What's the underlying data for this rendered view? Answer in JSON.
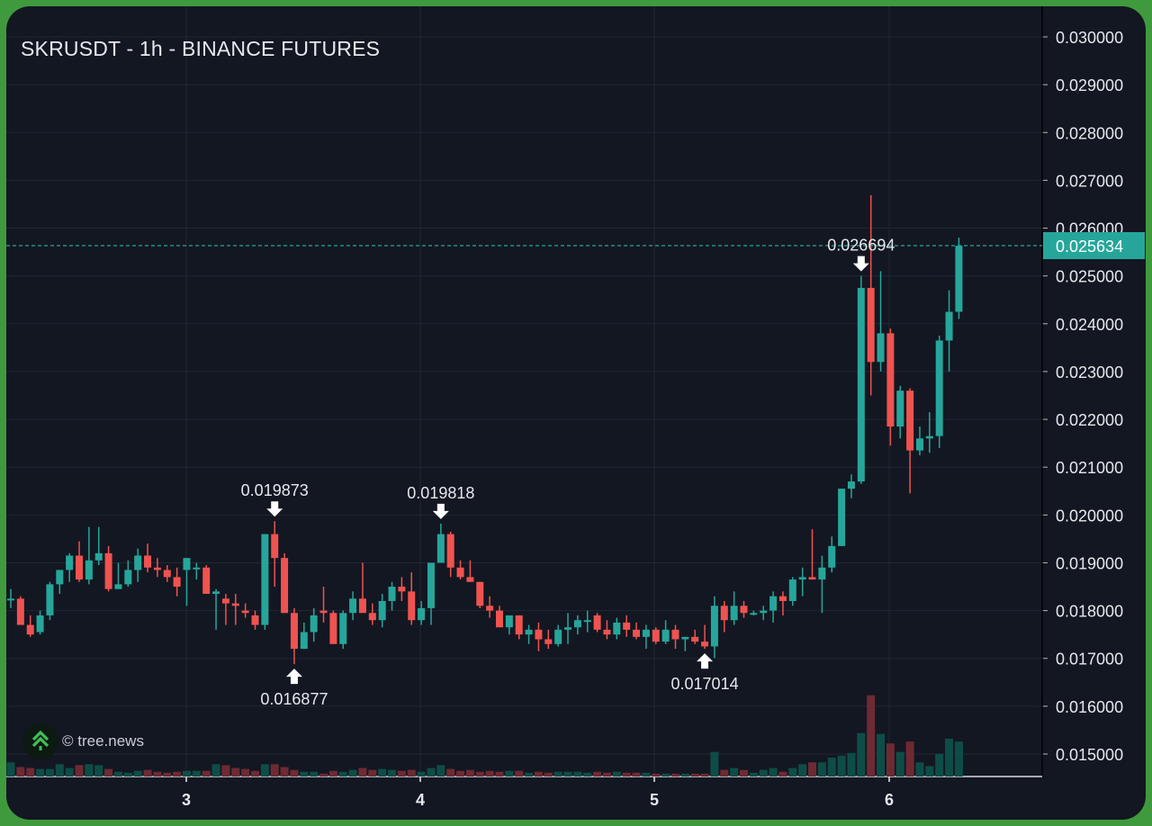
{
  "chart": {
    "title": "SKRUSDT - 1h - BINANCE FUTURES",
    "watermark": "© tree.news",
    "colors": {
      "background": "#131722",
      "frame": "#3f9a3e",
      "up": "#26a69a",
      "down": "#ef5350",
      "up_volume": "#0e4d47",
      "down_volume": "#6e2a33",
      "grid": "#232733",
      "text": "#e6e8ec",
      "current_price_bg": "#26a69a"
    },
    "current_price": "0.025634"
  },
  "chart_data": {
    "type": "candlestick",
    "title": "SKRUSDT - 1h - BINANCE FUTURES",
    "xlabel": "",
    "ylabel": "",
    "x_ticks": [
      "3",
      "4",
      "5",
      "6"
    ],
    "y_ticks": [
      "0.030000",
      "0.029000",
      "0.028000",
      "0.027000",
      "0.026000",
      "0.025000",
      "0.024000",
      "0.023000",
      "0.022000",
      "0.021000",
      "0.020000",
      "0.019000",
      "0.018000",
      "0.017000",
      "0.016000",
      "0.015000"
    ],
    "ylim": [
      0.0145,
      0.0305
    ],
    "grid": true,
    "current_price": 0.025634,
    "annotations": [
      {
        "label": "0.019873",
        "type": "high",
        "direction": "down"
      },
      {
        "label": "0.016877",
        "type": "low",
        "direction": "up"
      },
      {
        "label": "0.019818",
        "type": "high",
        "direction": "down"
      },
      {
        "label": "0.017014",
        "type": "low",
        "direction": "up"
      },
      {
        "label": "0.026694",
        "type": "high",
        "direction": "down"
      }
    ],
    "candles": [
      [
        0.01825,
        0.01845,
        0.01805,
        0.01825,
        1.5
      ],
      [
        0.01825,
        0.0183,
        0.0177,
        0.0177,
        1.0
      ],
      [
        0.0177,
        0.0179,
        0.01745,
        0.0175,
        0.9
      ],
      [
        0.01755,
        0.018,
        0.0175,
        0.0179,
        0.8
      ],
      [
        0.0179,
        0.0186,
        0.0178,
        0.01855,
        0.8
      ],
      [
        0.01855,
        0.0188,
        0.01835,
        0.01885,
        1.3
      ],
      [
        0.01885,
        0.0192,
        0.0186,
        0.01915,
        0.9
      ],
      [
        0.01915,
        0.01945,
        0.0186,
        0.01865,
        1.2
      ],
      [
        0.01865,
        0.01975,
        0.01855,
        0.01905,
        1.3
      ],
      [
        0.01905,
        0.01975,
        0.01895,
        0.0192,
        1.2
      ],
      [
        0.0192,
        0.01935,
        0.0184,
        0.01845,
        0.8
      ],
      [
        0.01845,
        0.019,
        0.01845,
        0.01855,
        0.5
      ],
      [
        0.01855,
        0.01905,
        0.0185,
        0.01885,
        0.4
      ],
      [
        0.01885,
        0.0193,
        0.0186,
        0.01915,
        0.6
      ],
      [
        0.01915,
        0.0194,
        0.0188,
        0.0189,
        0.7
      ],
      [
        0.0189,
        0.0191,
        0.0187,
        0.01885,
        0.5
      ],
      [
        0.01885,
        0.01895,
        0.0186,
        0.0187,
        0.4
      ],
      [
        0.0187,
        0.0189,
        0.0183,
        0.0185,
        0.5
      ],
      [
        0.01885,
        0.01895,
        0.0181,
        0.0191,
        0.6
      ],
      [
        0.0189,
        0.019,
        0.01865,
        0.0189,
        0.6
      ],
      [
        0.0189,
        0.01895,
        0.01835,
        0.01835,
        0.6
      ],
      [
        0.01835,
        0.01845,
        0.0176,
        0.0184,
        1.3
      ],
      [
        0.01825,
        0.01835,
        0.0177,
        0.01815,
        1.2
      ],
      [
        0.01815,
        0.01835,
        0.0177,
        0.0181,
        0.9
      ],
      [
        0.018,
        0.01815,
        0.01785,
        0.01795,
        0.8
      ],
      [
        0.0179,
        0.018,
        0.0176,
        0.0177,
        0.6
      ],
      [
        0.0177,
        0.0196,
        0.0176,
        0.0196,
        1.3
      ],
      [
        0.0196,
        0.01987,
        0.0185,
        0.0191,
        1.3
      ],
      [
        0.0191,
        0.0192,
        0.01795,
        0.01795,
        1.0
      ],
      [
        0.01795,
        0.01805,
        0.01688,
        0.0172,
        0.7
      ],
      [
        0.0172,
        0.01775,
        0.0172,
        0.01755,
        0.5
      ],
      [
        0.01755,
        0.01805,
        0.01735,
        0.0179,
        0.5
      ],
      [
        0.018,
        0.0185,
        0.01775,
        0.01795,
        0.3
      ],
      [
        0.01795,
        0.018,
        0.01735,
        0.0173,
        0.6
      ],
      [
        0.0173,
        0.018,
        0.0172,
        0.01795,
        0.5
      ],
      [
        0.01795,
        0.0184,
        0.0178,
        0.01825,
        0.7
      ],
      [
        0.01825,
        0.019,
        0.0181,
        0.01795,
        0.9
      ],
      [
        0.01795,
        0.01815,
        0.0177,
        0.0178,
        0.7
      ],
      [
        0.0178,
        0.01835,
        0.01765,
        0.0182,
        0.8
      ],
      [
        0.0182,
        0.0186,
        0.018,
        0.0185,
        0.7
      ],
      [
        0.0185,
        0.0187,
        0.0182,
        0.0184,
        0.6
      ],
      [
        0.0184,
        0.0188,
        0.0177,
        0.0178,
        0.7
      ],
      [
        0.0178,
        0.0182,
        0.0177,
        0.01805,
        0.5
      ],
      [
        0.01805,
        0.0188,
        0.0177,
        0.019,
        0.9
      ],
      [
        0.019,
        0.01982,
        0.019,
        0.0196,
        1.2
      ],
      [
        0.0196,
        0.01965,
        0.0187,
        0.0189,
        0.8
      ],
      [
        0.0189,
        0.01905,
        0.01865,
        0.0187,
        0.6
      ],
      [
        0.0187,
        0.01905,
        0.01865,
        0.0186,
        0.7
      ],
      [
        0.0186,
        0.0186,
        0.01805,
        0.0181,
        0.5
      ],
      [
        0.0181,
        0.0183,
        0.01785,
        0.018,
        0.6
      ],
      [
        0.018,
        0.0181,
        0.0177,
        0.01765,
        0.5
      ],
      [
        0.01765,
        0.0179,
        0.0175,
        0.0179,
        0.6
      ],
      [
        0.0179,
        0.0179,
        0.0174,
        0.0175,
        0.6
      ],
      [
        0.0175,
        0.0177,
        0.0173,
        0.0176,
        0.4
      ],
      [
        0.0176,
        0.01775,
        0.01715,
        0.0174,
        0.5
      ],
      [
        0.0174,
        0.0176,
        0.0172,
        0.0173,
        0.4
      ],
      [
        0.0173,
        0.0177,
        0.01725,
        0.0176,
        0.5
      ],
      [
        0.0176,
        0.01795,
        0.0173,
        0.01765,
        0.5
      ],
      [
        0.01765,
        0.0179,
        0.0175,
        0.0178,
        0.5
      ],
      [
        0.0178,
        0.018,
        0.01755,
        0.0178,
        0.4
      ],
      [
        0.0179,
        0.01795,
        0.01755,
        0.0176,
        0.5
      ],
      [
        0.0176,
        0.0178,
        0.0174,
        0.0175,
        0.4
      ],
      [
        0.0175,
        0.01785,
        0.0174,
        0.01775,
        0.5
      ],
      [
        0.01775,
        0.0179,
        0.01745,
        0.0176,
        0.4
      ],
      [
        0.0176,
        0.01775,
        0.0174,
        0.01745,
        0.4
      ],
      [
        0.01745,
        0.0177,
        0.0172,
        0.0176,
        0.4
      ],
      [
        0.0176,
        0.01765,
        0.0173,
        0.01735,
        0.3
      ],
      [
        0.01735,
        0.0178,
        0.0173,
        0.0176,
        0.3
      ],
      [
        0.0176,
        0.0177,
        0.0172,
        0.0174,
        0.3
      ],
      [
        0.0174,
        0.01745,
        0.01715,
        0.01745,
        0.3
      ],
      [
        0.01745,
        0.0176,
        0.0173,
        0.01735,
        0.3
      ],
      [
        0.01735,
        0.0177,
        0.0172,
        0.01725,
        0.3
      ],
      [
        0.01725,
        0.0183,
        0.01701,
        0.0181,
        2.6
      ],
      [
        0.0181,
        0.0182,
        0.01755,
        0.0178,
        0.7
      ],
      [
        0.0178,
        0.0184,
        0.0177,
        0.0181,
        0.9
      ],
      [
        0.0181,
        0.0182,
        0.01785,
        0.01795,
        0.7
      ],
      [
        0.01795,
        0.018,
        0.0179,
        0.01795,
        0.4
      ],
      [
        0.01795,
        0.0181,
        0.0178,
        0.018,
        0.7
      ],
      [
        0.018,
        0.0184,
        0.01775,
        0.0183,
        0.9
      ],
      [
        0.0183,
        0.0184,
        0.0179,
        0.0182,
        0.5
      ],
      [
        0.0182,
        0.0187,
        0.0181,
        0.01865,
        0.9
      ],
      [
        0.01865,
        0.0189,
        0.0183,
        0.0187,
        1.3
      ],
      [
        0.0187,
        0.0197,
        0.01865,
        0.01865,
        1.5
      ],
      [
        0.01865,
        0.01915,
        0.01795,
        0.0189,
        1.5
      ],
      [
        0.0189,
        0.01955,
        0.0188,
        0.01935,
        2.0
      ],
      [
        0.01935,
        0.02055,
        0.01935,
        0.02055,
        2.2
      ],
      [
        0.02055,
        0.02085,
        0.02035,
        0.0207,
        2.5
      ],
      [
        0.0207,
        0.025,
        0.02065,
        0.02475,
        4.6
      ],
      [
        0.02475,
        0.02669,
        0.0225,
        0.0232,
        8.6
      ],
      [
        0.0232,
        0.0251,
        0.023,
        0.0238,
        4.5
      ],
      [
        0.0238,
        0.0239,
        0.02145,
        0.02185,
        3.5
      ],
      [
        0.02185,
        0.0227,
        0.0216,
        0.0226,
        2.6
      ],
      [
        0.0226,
        0.02265,
        0.02045,
        0.02135,
        3.7
      ],
      [
        0.02135,
        0.02185,
        0.02125,
        0.0216,
        1.5
      ],
      [
        0.0216,
        0.02215,
        0.0213,
        0.02165,
        1.1
      ],
      [
        0.02165,
        0.02375,
        0.0214,
        0.02365,
        2.4
      ],
      [
        0.02365,
        0.0247,
        0.023,
        0.02425,
        4.0
      ],
      [
        0.02425,
        0.0258,
        0.0241,
        0.02563,
        3.7
      ]
    ]
  }
}
